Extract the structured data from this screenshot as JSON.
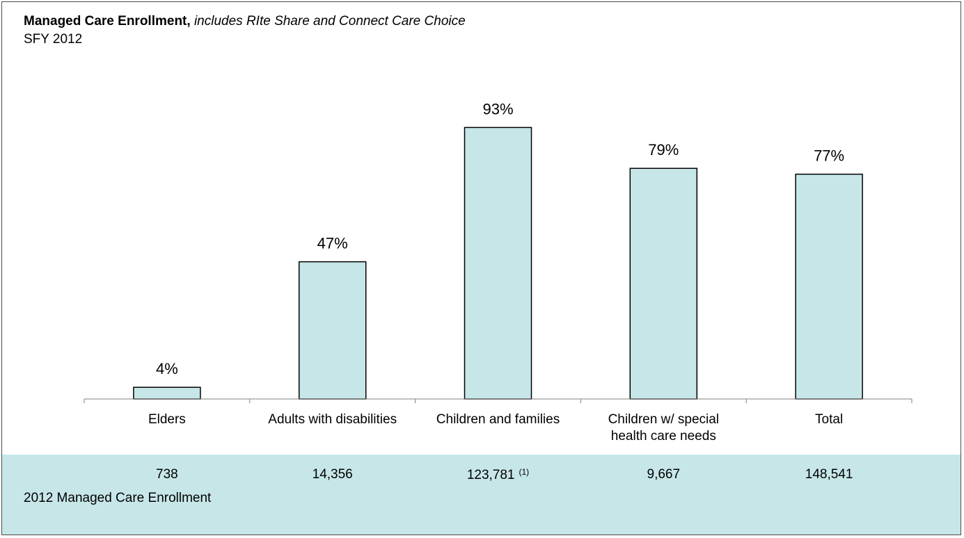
{
  "title": {
    "bold": "Managed Care Enrollment,",
    "italic": "includes RIte Share and Connect Care Choice",
    "subtitle": "SFY 2012"
  },
  "chart_data": {
    "type": "bar",
    "categories": [
      "Elders",
      "Adults with disabilities",
      "Children and families",
      "Children w/ special health care needs",
      "Total"
    ],
    "category_lines": [
      [
        "Elders"
      ],
      [
        "Adults with disabilities"
      ],
      [
        "Children and families"
      ],
      [
        "Children w/ special",
        "health care needs"
      ],
      [
        "Total"
      ]
    ],
    "values": [
      4,
      47,
      93,
      79,
      77
    ],
    "data_labels": [
      "4%",
      "47%",
      "93%",
      "79%",
      "77%"
    ],
    "ylim": [
      0,
      100
    ],
    "grid": false,
    "bar_color": "#c7e6e8",
    "bar_stroke": "#000000"
  },
  "enrollment": {
    "row_label": "2012 Managed Care Enrollment",
    "values": [
      "738",
      "14,356",
      "123,781",
      "9,667",
      "148,541"
    ],
    "footnote": "(1)",
    "panel_color": "#c7e6e8"
  }
}
